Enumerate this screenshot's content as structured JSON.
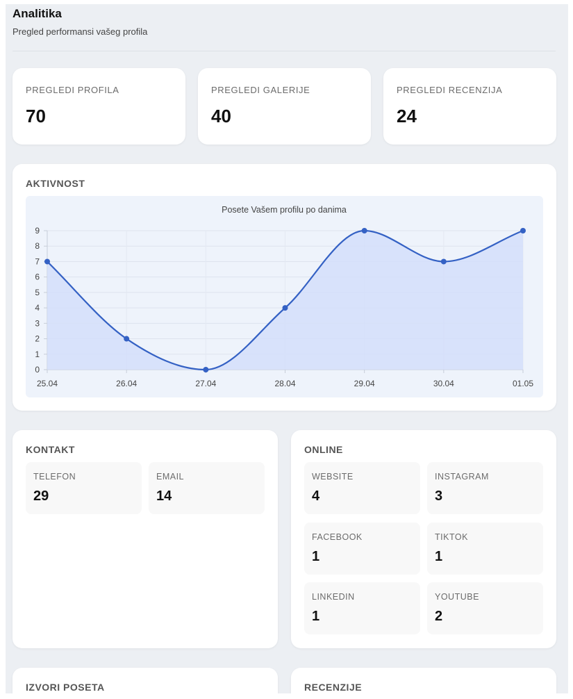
{
  "header": {
    "title": "Analitika",
    "subtitle": "Pregled performansi vašeg profila"
  },
  "stats": [
    {
      "label": "PREGLEDI PROFILA",
      "value": "70"
    },
    {
      "label": "PREGLEDI GALERIJE",
      "value": "40"
    },
    {
      "label": "PREGLEDI RECENZIJA",
      "value": "24"
    }
  ],
  "activity": {
    "section_title": "AKTIVNOST"
  },
  "chart_data": {
    "type": "line",
    "title": "Posete Vašem profilu po danima",
    "categories": [
      "25.04",
      "26.04",
      "27.04",
      "28.04",
      "29.04",
      "30.04",
      "01.05"
    ],
    "values": [
      7,
      2,
      0,
      4,
      9,
      7,
      9
    ],
    "ylim": [
      0,
      9
    ],
    "yticks": [
      0,
      1,
      2,
      3,
      4,
      5,
      6,
      7,
      8,
      9
    ],
    "xlabel": "",
    "ylabel": "",
    "grid": true,
    "fill": true,
    "line_color": "#3461c4",
    "fill_color": "#d3defa"
  },
  "contact": {
    "section_title": "KONTAKT",
    "tiles": [
      {
        "label": "TELEFON",
        "value": "29"
      },
      {
        "label": "EMAIL",
        "value": "14"
      }
    ]
  },
  "online": {
    "section_title": "ONLINE",
    "tiles": [
      {
        "label": "WEBSITE",
        "value": "4"
      },
      {
        "label": "INSTAGRAM",
        "value": "3"
      },
      {
        "label": "FACEBOOK",
        "value": "1"
      },
      {
        "label": "TIKTOK",
        "value": "1"
      },
      {
        "label": "LINKEDIN",
        "value": "1"
      },
      {
        "label": "YOUTUBE",
        "value": "2"
      }
    ]
  },
  "sources": {
    "section_title": "IZVORI POSETA"
  },
  "reviews": {
    "section_title": "RECENZIJE"
  }
}
